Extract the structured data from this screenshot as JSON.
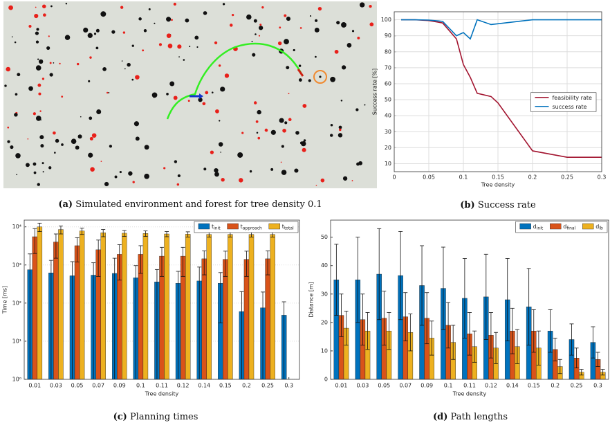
{
  "image_panel": {
    "caption_label": "(a)",
    "caption": "Simulated environment and forest for tree density 0.1"
  },
  "chart_data": [
    {
      "type": "line",
      "caption_label": "(b)",
      "caption": "Success rate",
      "xlabel": "Tree density",
      "ylabel": "Success rate [%]",
      "x": [
        0.01,
        0.03,
        0.05,
        0.07,
        0.09,
        0.1,
        0.11,
        0.12,
        0.14,
        0.15,
        0.2,
        0.25,
        0.3
      ],
      "series": [
        {
          "name": "feasibility rate",
          "color": "#a2142f",
          "values": [
            100,
            100,
            99.5,
            98,
            88,
            72,
            64,
            54,
            52,
            48,
            18,
            14,
            14
          ]
        },
        {
          "name": "success rate",
          "color": "#0072bd",
          "values": [
            100,
            100,
            99.8,
            99,
            90,
            92,
            88,
            100,
            97,
            97.5,
            100,
            100,
            100
          ]
        }
      ],
      "xlim": [
        0,
        0.3
      ],
      "xticks": [
        0,
        0.05,
        0.1,
        0.15,
        0.2,
        0.25,
        0.3
      ],
      "ylim": [
        5,
        105
      ],
      "yticks": [
        10,
        20,
        30,
        40,
        50,
        60,
        70,
        80,
        90,
        100
      ],
      "grid": true,
      "legend": "center right"
    },
    {
      "type": "bar",
      "caption_label": "(c)",
      "caption": "Planning times",
      "xlabel": "Tree density",
      "ylabel": "Time [ms]",
      "log_scale": true,
      "categories": [
        "0.01",
        "0.03",
        "0.05",
        "0.07",
        "0.09",
        "0.1",
        "0.11",
        "0.12",
        "0.14",
        "0.15",
        "0.2",
        "0.25",
        "0.3"
      ],
      "series": [
        {
          "name": "t",
          "subscript": "init",
          "color": "#0072bd",
          "values": [
            750,
            620,
            520,
            540,
            600,
            460,
            360,
            330,
            380,
            330,
            60,
            75,
            48
          ],
          "errors": [
            1200,
            700,
            700,
            600,
            900,
            500,
            400,
            350,
            500,
            300,
            140,
            120,
            60
          ]
        },
        {
          "name": "t",
          "subscript": "approach",
          "color": "#d95319",
          "values": [
            5500,
            4000,
            3200,
            2500,
            1900,
            1900,
            1700,
            1700,
            1450,
            1400,
            1400,
            1450,
            null
          ],
          "errors": [
            3500,
            2500,
            2000,
            2000,
            1500,
            1300,
            1200,
            1200,
            900,
            900,
            900,
            900,
            null
          ]
        },
        {
          "name": "t",
          "subscript": "total",
          "color": "#edb120",
          "values": [
            10000,
            8500,
            7800,
            7000,
            6800,
            6700,
            6500,
            6400,
            6300,
            6300,
            6300,
            6300,
            null
          ],
          "errors": [
            2500,
            2000,
            1500,
            1500,
            1200,
            1100,
            1000,
            1000,
            900,
            900,
            900,
            900,
            null
          ]
        }
      ],
      "ylim": [
        1,
        15000
      ],
      "yticks": [
        {
          "value": 1,
          "label": "10⁰"
        },
        {
          "value": 10,
          "label": "10¹"
        },
        {
          "value": 100,
          "label": "10²"
        },
        {
          "value": 1000,
          "label": "10³"
        },
        {
          "value": 10000,
          "label": "10⁴"
        }
      ],
      "grid": true,
      "legend": "upper right"
    },
    {
      "type": "bar",
      "caption_label": "(d)",
      "caption": "Path lengths",
      "xlabel": "Tree density",
      "ylabel": "Distance [m]",
      "categories": [
        "0.01",
        "0.03",
        "0.05",
        "0.07",
        "0.09",
        "0.1",
        "0.11",
        "0.12",
        "0.14",
        "0.15",
        "0.2",
        "0.25",
        "0.3"
      ],
      "series": [
        {
          "name": "d",
          "subscript": "init",
          "color": "#0072bd",
          "values": [
            35,
            35,
            37,
            36.5,
            33,
            32,
            28.5,
            29,
            28,
            25.5,
            17,
            14,
            13
          ],
          "errors": [
            12.5,
            15,
            16,
            15.5,
            14,
            14.5,
            14,
            15,
            14.5,
            13.5,
            7.5,
            5.5,
            5.5
          ]
        },
        {
          "name": "d",
          "subscript": "final",
          "color": "#d95319",
          "values": [
            22.5,
            21,
            21.5,
            22,
            21.5,
            19,
            16,
            15.5,
            17,
            17,
            10.5,
            7.5,
            7
          ],
          "errors": [
            7.5,
            9,
            9.5,
            8.5,
            9,
            8,
            7.5,
            8,
            8,
            7.5,
            4,
            3.5,
            2.5
          ]
        },
        {
          "name": "d",
          "subscript": "lb",
          "color": "#edb120",
          "values": [
            18,
            17,
            17,
            16.5,
            14.5,
            13,
            11.5,
            11,
            11.5,
            11,
            4.5,
            2.5,
            2.5
          ],
          "errors": [
            6,
            6.5,
            6.5,
            6.5,
            6,
            6,
            5.5,
            5.5,
            6,
            6,
            2.5,
            1,
            1
          ]
        }
      ],
      "ylim": [
        0,
        56
      ],
      "yticks": [
        0,
        10,
        20,
        30,
        40,
        50
      ],
      "grid": false,
      "legend": "upper right"
    }
  ]
}
